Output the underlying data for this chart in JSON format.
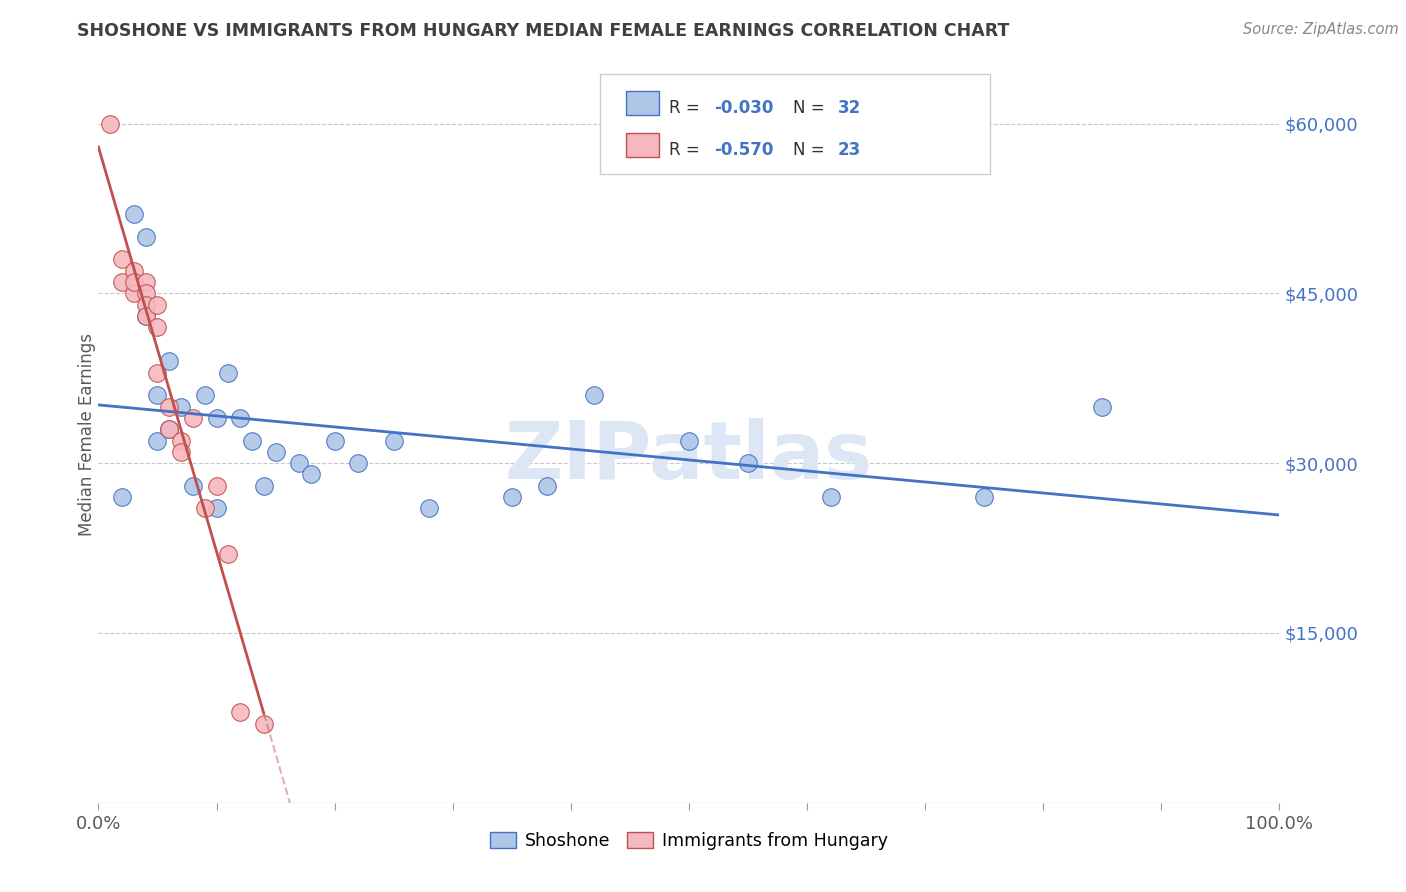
{
  "title": "SHOSHONE VS IMMIGRANTS FROM HUNGARY MEDIAN FEMALE EARNINGS CORRELATION CHART",
  "source": "Source: ZipAtlas.com",
  "ylabel": "Median Female Earnings",
  "watermark": "ZIPatlas",
  "legend_r1": "-0.030",
  "legend_n1": "32",
  "legend_r2": "-0.570",
  "legend_n2": "23",
  "xlim": [
    0.0,
    1.0
  ],
  "ylim": [
    0,
    65000
  ],
  "yticks": [
    0,
    15000,
    30000,
    45000,
    60000
  ],
  "ytick_labels": [
    "",
    "$15,000",
    "$30,000",
    "$45,000",
    "$60,000"
  ],
  "xticks": [
    0.0,
    0.1,
    0.2,
    0.3,
    0.4,
    0.5,
    0.6,
    0.7,
    0.8,
    0.9,
    1.0
  ],
  "blue_scatter_x": [
    0.02,
    0.03,
    0.04,
    0.04,
    0.05,
    0.05,
    0.06,
    0.06,
    0.07,
    0.08,
    0.09,
    0.1,
    0.1,
    0.11,
    0.12,
    0.13,
    0.14,
    0.15,
    0.17,
    0.18,
    0.2,
    0.22,
    0.25,
    0.28,
    0.35,
    0.38,
    0.42,
    0.5,
    0.55,
    0.62,
    0.75,
    0.85
  ],
  "blue_scatter_y": [
    27000,
    52000,
    50000,
    43000,
    32000,
    36000,
    39000,
    33000,
    35000,
    28000,
    36000,
    34000,
    26000,
    38000,
    34000,
    32000,
    28000,
    31000,
    30000,
    29000,
    32000,
    30000,
    32000,
    26000,
    27000,
    28000,
    36000,
    32000,
    30000,
    27000,
    27000,
    35000
  ],
  "pink_scatter_x": [
    0.01,
    0.02,
    0.02,
    0.03,
    0.03,
    0.03,
    0.04,
    0.04,
    0.04,
    0.04,
    0.05,
    0.05,
    0.05,
    0.06,
    0.06,
    0.07,
    0.07,
    0.08,
    0.09,
    0.1,
    0.11,
    0.12,
    0.14
  ],
  "pink_scatter_y": [
    60000,
    48000,
    46000,
    47000,
    45000,
    46000,
    46000,
    45000,
    44000,
    43000,
    44000,
    42000,
    38000,
    35000,
    33000,
    32000,
    31000,
    34000,
    26000,
    28000,
    22000,
    8000,
    7000
  ],
  "blue_line_color": "#4472c4",
  "pink_line_color": "#c0504d",
  "blue_marker_face": "#aec6e8",
  "blue_marker_edge": "#4472c4",
  "pink_marker_face": "#f4b8be",
  "pink_marker_edge": "#c0504d",
  "background_color": "#ffffff",
  "grid_color": "#c8c8c8",
  "title_color": "#404040",
  "axis_label_color": "#595959",
  "ytick_color": "#4472c4",
  "xtick_color": "#595959",
  "watermark_color": "#dce6f5"
}
